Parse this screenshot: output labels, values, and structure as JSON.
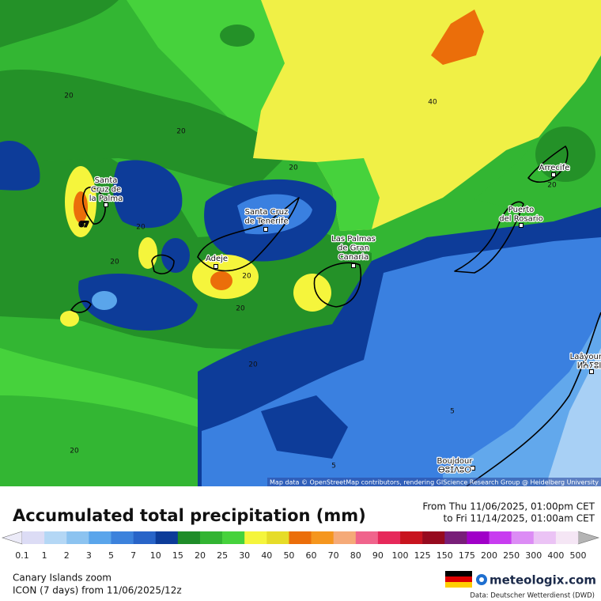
{
  "map": {
    "cities": [
      {
        "lines": [
          "Santa",
          "Cruz de",
          "la Palma"
        ]
      },
      {
        "lines": [
          "Santa Cruz",
          "de Tenerife"
        ]
      },
      {
        "lines": [
          "Adeje"
        ]
      },
      {
        "lines": [
          "Las Palmas",
          "de Gran",
          "Canaria"
        ]
      },
      {
        "lines": [
          "Puerto",
          "del Rosario"
        ]
      },
      {
        "lines": [
          "Arrecife"
        ]
      },
      {
        "lines": [
          "Laâyoune",
          "ⵍⵄⵢⵓⵏ"
        ]
      },
      {
        "lines": [
          "Boujdour",
          "ⴱⵓⵊⴷⵓⵔ"
        ]
      }
    ],
    "contour_labels": [
      "20",
      "20",
      "20",
      "20",
      "20",
      "20",
      "20",
      "20",
      "20",
      "20",
      "40",
      "5",
      "5",
      "67"
    ],
    "attribution": "Map data © OpenStreetMap contributors, rendering GIScience Research Group @ Heidelberg University"
  },
  "header": {
    "title": "Accumulated total precipitation (mm)",
    "from": "From Thu 11/06/2025, 01:00pm CET",
    "to": "to Fri 11/14/2025, 01:00am CET"
  },
  "legend": {
    "ticks": [
      0.1,
      1,
      2,
      3,
      5,
      7,
      10,
      15,
      20,
      25,
      30,
      40,
      50,
      60,
      70,
      80,
      90,
      100,
      125,
      150,
      175,
      200,
      250,
      300,
      400,
      500
    ],
    "under_color": "#ecebf8",
    "over_color": "#b4b4b4",
    "colors": [
      "#dcdcf5",
      "#b4d7f5",
      "#8cc3f0",
      "#5aa5eb",
      "#3c82dc",
      "#2864c8",
      "#0d3c99",
      "#1e8c28",
      "#32b432",
      "#46d23c",
      "#f5f53c",
      "#e6dc28",
      "#eb6e0a",
      "#f5961e",
      "#f5aa78",
      "#f0648c",
      "#e6285a",
      "#c8141e",
      "#960a1e",
      "#781e78",
      "#a000c8",
      "#c83cf0",
      "#dc8cf5",
      "#ebc3f5",
      "#f5e6f5"
    ]
  },
  "footer": {
    "region": "Canary Islands zoom",
    "model": "ICON (7 days) from 11/06/2025/12z",
    "brand": "meteologix.com",
    "source": "Data: Deutscher Wetterdienst (DWD)"
  }
}
